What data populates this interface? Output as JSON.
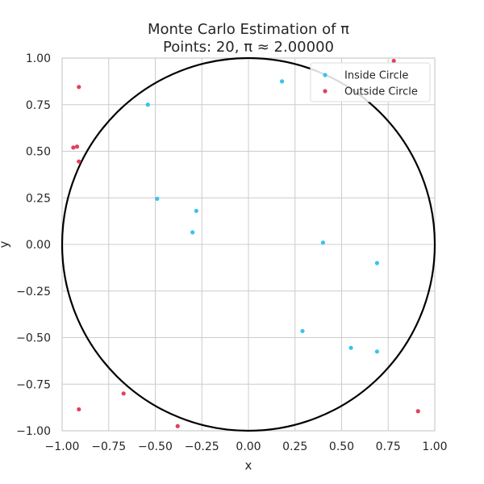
{
  "chart_data": {
    "type": "scatter",
    "title_line1": "Monte Carlo Estimation of π",
    "title_line2": "Points: 20, π ≈ 2.00000",
    "xlabel": "x",
    "ylabel": "y",
    "xlim": [
      -1.0,
      1.0
    ],
    "ylim": [
      -1.0,
      1.0
    ],
    "xticks": [
      "−1.00",
      "−0.75",
      "−0.50",
      "−0.25",
      "0.00",
      "0.25",
      "0.50",
      "0.75",
      "1.00"
    ],
    "yticks": [
      "−1.00",
      "−0.75",
      "−0.50",
      "−0.25",
      "0.00",
      "0.25",
      "0.50",
      "0.75",
      "1.00"
    ],
    "grid": true,
    "legend_position": "top-right",
    "circle": {
      "center": [
        0,
        0
      ],
      "radius": 1,
      "color": "#000000"
    },
    "series": [
      {
        "name": "Inside Circle",
        "color": "#38c3ec",
        "points": [
          [
            0.18,
            0.875
          ],
          [
            -0.54,
            0.75
          ],
          [
            -0.49,
            0.245
          ],
          [
            -0.28,
            0.18
          ],
          [
            -0.3,
            0.065
          ],
          [
            0.4,
            0.01
          ],
          [
            0.69,
            -0.1
          ],
          [
            0.29,
            -0.465
          ],
          [
            0.55,
            -0.555
          ],
          [
            0.69,
            -0.575
          ]
        ]
      },
      {
        "name": "Outside Circle",
        "color": "#e0415e",
        "points": [
          [
            -0.91,
            0.845
          ],
          [
            -0.92,
            0.525
          ],
          [
            -0.91,
            0.445
          ],
          [
            0.78,
            0.985
          ],
          [
            0.76,
            0.83
          ],
          [
            0.91,
            -0.895
          ],
          [
            -0.91,
            -0.885
          ],
          [
            -0.67,
            -0.8
          ],
          [
            -0.38,
            -0.975
          ],
          [
            -0.94,
            0.52
          ]
        ]
      }
    ]
  }
}
